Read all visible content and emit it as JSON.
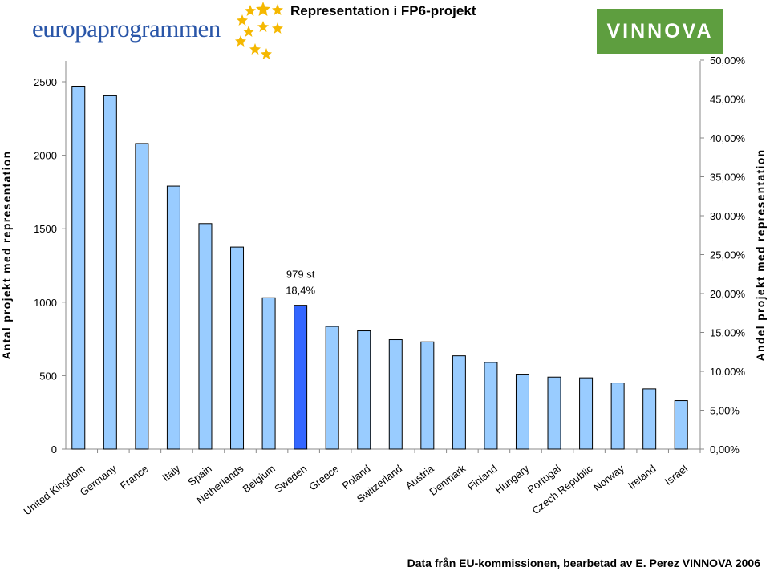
{
  "header": {
    "logo_left": "europaprogrammen",
    "logo_right": "VINNOVA",
    "title": "Representation i FP6-projekt"
  },
  "footer": {
    "source": "Data från EU-kommissionen, bearbetad av E. Perez VINNOVA 2006"
  },
  "colors": {
    "bar": "#99ccff",
    "highlight": "#3366ff",
    "logo_green": "#5e9e3f",
    "logo_blue": "#2a56a8"
  },
  "chart_data": {
    "type": "bar",
    "title": "Representation i FP6-projekt",
    "ylabel": "Antal projekt med representation",
    "y2label": "Andel projekt med representation",
    "ylim": [
      0,
      2500
    ],
    "yticks": [
      0,
      500,
      1000,
      1500,
      2000,
      2500
    ],
    "y2ticks": [
      "0,00%",
      "5,00%",
      "10,00%",
      "15,00%",
      "20,00%",
      "25,00%",
      "30,00%",
      "35,00%",
      "40,00%",
      "45,00%",
      "50,00%"
    ],
    "categories": [
      "United Kingdom",
      "Germany",
      "France",
      "Italy",
      "Spain",
      "Netherlands",
      "Belgium",
      "Sweden",
      "Greece",
      "Poland",
      "Switzerland",
      "Austria",
      "Denmark",
      "Finland",
      "Hungary",
      "Portugal",
      "Czech Republic",
      "Norway",
      "Ireland",
      "Israel"
    ],
    "values": [
      2470,
      2405,
      2080,
      1790,
      1535,
      1375,
      1030,
      979,
      835,
      805,
      745,
      730,
      635,
      590,
      510,
      490,
      485,
      450,
      410,
      330
    ],
    "highlight": "Sweden",
    "annotation": {
      "category": "Sweden",
      "line1": "979 st",
      "line2": "18,4%"
    },
    "grid": false
  }
}
